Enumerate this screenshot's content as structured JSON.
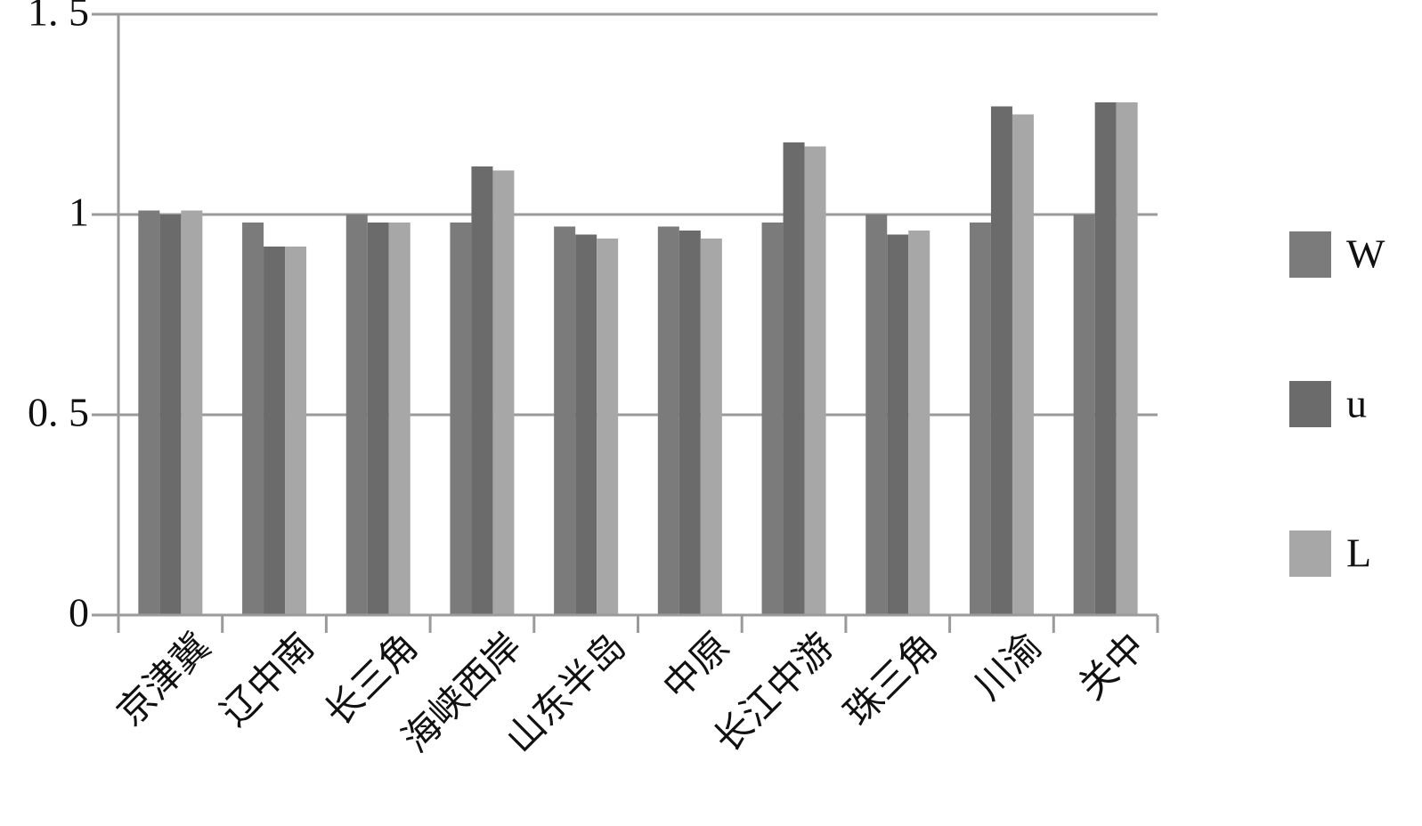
{
  "chart_data": {
    "type": "bar",
    "categories": [
      "京津冀",
      "辽中南",
      "长三角",
      "海峡西岸",
      "山东半岛",
      "中原",
      "长江中游",
      "珠三角",
      "川渝",
      "关中"
    ],
    "series": [
      {
        "name": "W",
        "color": "#7b7b7b",
        "values": [
          1.01,
          0.98,
          1.0,
          0.98,
          0.97,
          0.97,
          0.98,
          1.0,
          0.98,
          1.0
        ]
      },
      {
        "name": "u",
        "color": "#6b6b6b",
        "values": [
          1.0,
          0.92,
          0.98,
          1.12,
          0.95,
          0.96,
          1.18,
          0.95,
          1.27,
          1.28
        ]
      },
      {
        "name": "L",
        "color": "#a7a7a7",
        "values": [
          1.01,
          0.92,
          0.98,
          1.11,
          0.94,
          0.94,
          1.17,
          0.96,
          1.25,
          1.28
        ]
      }
    ],
    "ylim": [
      0,
      1.5
    ],
    "yticks": [
      0,
      {
        "value": 0.5,
        "label": "0. 5"
      },
      1,
      {
        "value": 1.5,
        "label": "1. 5"
      }
    ],
    "grid": true,
    "legend": "right"
  }
}
